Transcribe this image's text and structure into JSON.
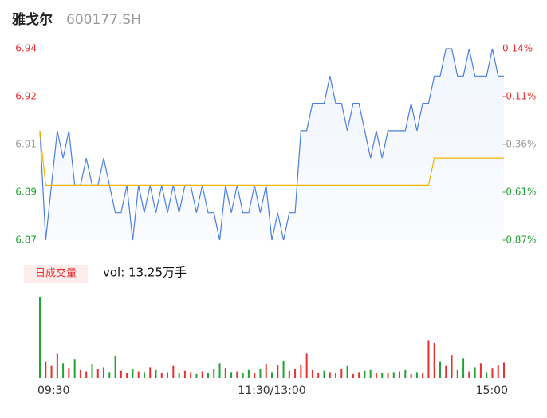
{
  "header": {
    "name": "雅戈尔",
    "code": "600177.SH"
  },
  "chart_data": [
    {
      "type": "line",
      "categories": [
        "09:30",
        null,
        null,
        null,
        null,
        null,
        null,
        null,
        null,
        null,
        null,
        null,
        null,
        null,
        null,
        null,
        null,
        null,
        null,
        null,
        null,
        null,
        null,
        null,
        null,
        null,
        null,
        null,
        null,
        null,
        null,
        null,
        null,
        null,
        null,
        null,
        null,
        null,
        null,
        null,
        "11:30/13:00",
        null,
        null,
        null,
        null,
        null,
        null,
        null,
        null,
        null,
        null,
        null,
        null,
        null,
        null,
        null,
        null,
        null,
        null,
        null,
        null,
        null,
        null,
        null,
        null,
        null,
        null,
        null,
        null,
        null,
        null,
        null,
        null,
        null,
        null,
        null,
        null,
        null,
        null,
        null,
        "15:00"
      ],
      "series": [
        {
          "name": "price",
          "color": "#4a7fe0",
          "values": [
            6.91,
            6.87,
            6.89,
            6.91,
            6.9,
            6.91,
            6.89,
            6.89,
            6.9,
            6.89,
            6.89,
            6.9,
            6.89,
            6.88,
            6.88,
            6.89,
            6.87,
            6.89,
            6.88,
            6.89,
            6.88,
            6.89,
            6.88,
            6.89,
            6.88,
            6.89,
            6.89,
            6.88,
            6.89,
            6.88,
            6.88,
            6.87,
            6.89,
            6.88,
            6.89,
            6.88,
            6.88,
            6.89,
            6.88,
            6.89,
            6.87,
            6.88,
            6.87,
            6.88,
            6.88,
            6.91,
            6.91,
            6.92,
            6.92,
            6.92,
            6.93,
            6.92,
            6.92,
            6.91,
            6.92,
            6.92,
            6.91,
            6.9,
            6.91,
            6.9,
            6.91,
            6.91,
            6.91,
            6.91,
            6.92,
            6.91,
            6.92,
            6.92,
            6.93,
            6.93,
            6.94,
            6.94,
            6.93,
            6.93,
            6.94,
            6.93,
            6.93,
            6.93,
            6.94,
            6.93,
            6.93
          ]
        },
        {
          "name": "average",
          "color": "#f0b400",
          "values": [
            6.91,
            6.89,
            6.89,
            6.89,
            6.89,
            6.89,
            6.89,
            6.89,
            6.89,
            6.89,
            6.89,
            6.89,
            6.89,
            6.89,
            6.89,
            6.89,
            6.89,
            6.89,
            6.89,
            6.89,
            6.89,
            6.89,
            6.89,
            6.89,
            6.89,
            6.89,
            6.89,
            6.89,
            6.89,
            6.89,
            6.89,
            6.89,
            6.89,
            6.89,
            6.89,
            6.89,
            6.89,
            6.89,
            6.89,
            6.89,
            6.89,
            6.89,
            6.89,
            6.89,
            6.89,
            6.89,
            6.89,
            6.89,
            6.89,
            6.89,
            6.89,
            6.89,
            6.89,
            6.89,
            6.89,
            6.89,
            6.89,
            6.89,
            6.89,
            6.89,
            6.89,
            6.89,
            6.89,
            6.89,
            6.89,
            6.89,
            6.89,
            6.89,
            6.9,
            6.9,
            6.9,
            6.9,
            6.9,
            6.9,
            6.9,
            6.9,
            6.9,
            6.9,
            6.9,
            6.9,
            6.9
          ]
        }
      ],
      "ylim": [
        6.87,
        6.94
      ],
      "yticks": [
        {
          "value": 6.94,
          "label": "6.94"
        },
        {
          "value": 6.9225,
          "label": "6.92"
        },
        {
          "value": 6.905,
          "label": "6.91"
        },
        {
          "value": 6.8875,
          "label": "6.89"
        },
        {
          "value": 6.87,
          "label": "6.87"
        }
      ],
      "ytick_colors": [
        "#e93030",
        "#e93030",
        "#999999",
        "#21a336",
        "#21a336"
      ],
      "y2lim": [
        -0.866,
        0.144
      ],
      "y2ticks": [
        {
          "value": 0.144,
          "label": "0.14%"
        },
        {
          "value": -0.1085,
          "label": "-0.11%"
        },
        {
          "value": -0.361,
          "label": "-0.36%"
        },
        {
          "value": -0.6135,
          "label": "-0.61%"
        },
        {
          "value": -0.866,
          "label": "-0.87%"
        }
      ],
      "y2tick_colors": [
        "#e93030",
        "#e93030",
        "#999999",
        "#21a336",
        "#21a336"
      ]
    },
    {
      "type": "bar",
      "panel_title": "日成交量",
      "volume_label": "vol: 13.25万手",
      "ylim": [
        0,
        12000
      ],
      "values": [
        12000,
        2400,
        1800,
        3600,
        2200,
        1500,
        2800,
        1200,
        1000,
        2100,
        1300,
        1600,
        900,
        3300,
        1100,
        800,
        1400,
        1000,
        900,
        1600,
        1200,
        800,
        900,
        1800,
        700,
        1100,
        900,
        600,
        1000,
        800,
        1300,
        2200,
        1500,
        900,
        1000,
        700,
        1200,
        800,
        1400,
        2100,
        900,
        1900,
        2600,
        1100,
        1300,
        2000,
        3600,
        1200,
        800,
        1100,
        900,
        700,
        1300,
        1800,
        600,
        900,
        1100,
        1200,
        700,
        800,
        700,
        900,
        1000,
        1200,
        600,
        900,
        800,
        5600,
        5200,
        2400,
        1800,
        3400,
        1200,
        2900,
        1000,
        1600,
        2200,
        900,
        1500,
        1900,
        2300
      ],
      "colors": [
        "#21a336",
        "#e93030",
        "#e93030",
        "#e93030",
        "#21a336",
        "#e93030",
        "#21a336",
        "#e93030",
        "#e93030",
        "#21a336",
        "#e93030",
        "#e93030",
        "#21a336",
        "#21a336",
        "#e93030",
        "#e93030",
        "#21a336",
        "#e93030",
        "#21a336",
        "#e93030",
        "#21a336",
        "#e93030",
        "#21a336",
        "#e93030",
        "#21a336",
        "#e93030",
        "#e93030",
        "#21a336",
        "#e93030",
        "#21a336",
        "#21a336",
        "#21a336",
        "#e93030",
        "#21a336",
        "#e93030",
        "#21a336",
        "#21a336",
        "#e93030",
        "#21a336",
        "#e93030",
        "#21a336",
        "#e93030",
        "#21a336",
        "#e93030",
        "#e93030",
        "#e93030",
        "#e93030",
        "#e93030",
        "#e93030",
        "#21a336",
        "#e93030",
        "#21a336",
        "#e93030",
        "#21a336",
        "#e93030",
        "#e93030",
        "#21a336",
        "#21a336",
        "#e93030",
        "#21a336",
        "#e93030",
        "#21a336",
        "#e93030",
        "#21a336",
        "#e93030",
        "#21a336",
        "#e93030",
        "#e93030",
        "#e93030",
        "#21a336",
        "#e93030",
        "#e93030",
        "#21a336",
        "#21a336",
        "#e93030",
        "#21a336",
        "#e93030",
        "#21a336",
        "#e93030",
        "#e93030",
        "#e93030"
      ]
    }
  ]
}
